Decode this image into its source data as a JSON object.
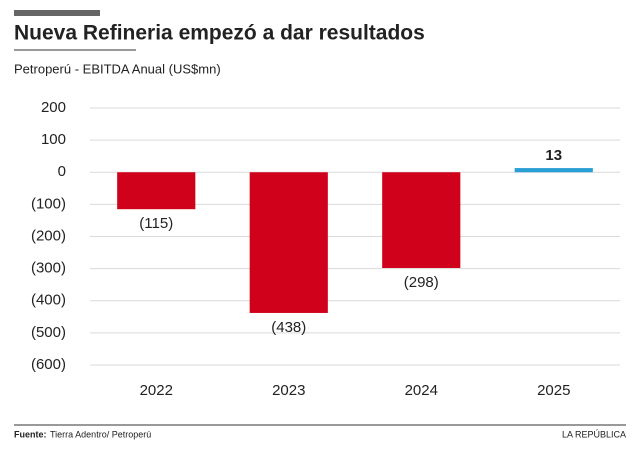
{
  "chart_data": {
    "type": "bar",
    "title": "Nueva Refineria empezó a dar resultados",
    "subtitle": "Petroperú - EBITDA Anual (US$mn)",
    "categories": [
      "2022",
      "2023",
      "2024",
      "2025"
    ],
    "values": [
      -115,
      -438,
      -298,
      13
    ],
    "value_labels": [
      "(115)",
      "(438)",
      "(298)",
      "13"
    ],
    "colors": [
      "#d0021b",
      "#d0021b",
      "#d0021b",
      "#2a9fd6"
    ],
    "ylim": [
      -600,
      200
    ],
    "yticks": [
      200,
      100,
      0,
      {
        "value": -100,
        "label": "(100)"
      },
      {
        "value": -200,
        "label": "(200)"
      },
      {
        "value": -300,
        "label": "(300)"
      },
      {
        "value": -400,
        "label": "(400)"
      },
      {
        "value": -500,
        "label": "(500)"
      },
      {
        "value": -600,
        "label": "(600)"
      }
    ],
    "grid": true,
    "source_label": "Fuente:",
    "source": "Tierra Adentro/ Petroperú",
    "brand": "LA REPÚBLICA"
  }
}
